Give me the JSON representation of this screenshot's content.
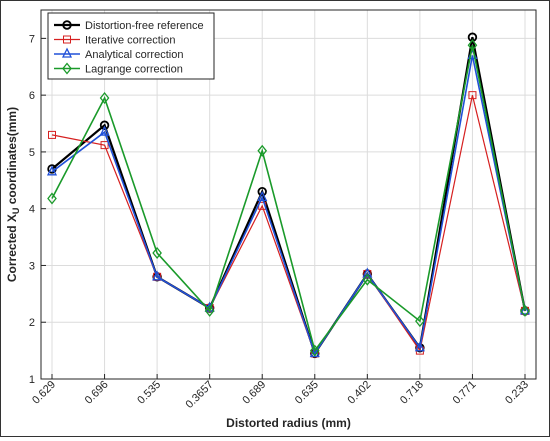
{
  "chart_data": {
    "type": "line",
    "categories": [
      "0.629",
      "0.696",
      "0.535",
      "0.3657",
      "0.689",
      "0.635",
      "0.402",
      "0.718",
      "0.771",
      "0.233"
    ],
    "xlabel": "Distorted radius (mm)",
    "ylabel": "Corrected X",
    "ylabel_sub": "U",
    "ylabel_suffix": " coordinates(mm)",
    "ylim": [
      1,
      7.5
    ],
    "yticks": [
      1,
      2,
      3,
      4,
      5,
      6,
      7
    ],
    "grid": true,
    "legend_position": "top-left",
    "series": [
      {
        "name": "Distortion-free reference",
        "color": "#000000",
        "marker": "circle",
        "values": [
          4.7,
          5.47,
          2.8,
          2.25,
          4.3,
          1.45,
          2.85,
          1.55,
          7.02,
          2.2
        ]
      },
      {
        "name": "Iterative correction",
        "color": "#d62020",
        "marker": "square",
        "values": [
          5.3,
          5.12,
          2.8,
          2.25,
          4.05,
          1.45,
          2.85,
          1.5,
          6.0,
          2.2
        ]
      },
      {
        "name": "Analytical correction",
        "color": "#2050d8",
        "marker": "triangle",
        "values": [
          4.65,
          5.35,
          2.8,
          2.25,
          4.2,
          1.45,
          2.85,
          1.55,
          6.7,
          2.2
        ]
      },
      {
        "name": "Lagrange correction",
        "color": "#1a9a2a",
        "marker": "diamond",
        "values": [
          4.18,
          5.95,
          3.22,
          2.2,
          5.02,
          1.5,
          2.75,
          2.02,
          6.88,
          2.2
        ]
      }
    ]
  }
}
